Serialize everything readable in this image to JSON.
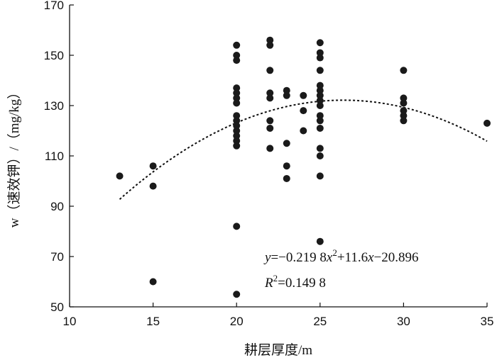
{
  "chart_data": {
    "type": "scatter",
    "title": "",
    "xlabel": "耕层厚度/m",
    "ylabel": "w（速效钾）/（mg/kg）",
    "xlim": [
      10,
      35
    ],
    "ylim": [
      50,
      170
    ],
    "x_ticks": [
      "10",
      "15",
      "20",
      "25",
      "30",
      "35"
    ],
    "y_ticks": [
      "50",
      "70",
      "90",
      "110",
      "130",
      "150",
      "170"
    ],
    "grid": false,
    "legend": "none",
    "marker_color": "#1a1a1a",
    "trend_color": "#111111",
    "points": [
      {
        "x": 13,
        "y": 102
      },
      {
        "x": 15,
        "y": 106
      },
      {
        "x": 15,
        "y": 98
      },
      {
        "x": 15,
        "y": 60
      },
      {
        "x": 20,
        "y": 154
      },
      {
        "x": 20,
        "y": 150
      },
      {
        "x": 20,
        "y": 148
      },
      {
        "x": 20,
        "y": 137
      },
      {
        "x": 20,
        "y": 135
      },
      {
        "x": 20,
        "y": 133
      },
      {
        "x": 20,
        "y": 131
      },
      {
        "x": 20,
        "y": 126
      },
      {
        "x": 20,
        "y": 124
      },
      {
        "x": 20,
        "y": 122
      },
      {
        "x": 20,
        "y": 120
      },
      {
        "x": 20,
        "y": 118
      },
      {
        "x": 20,
        "y": 116
      },
      {
        "x": 20,
        "y": 114
      },
      {
        "x": 20,
        "y": 82
      },
      {
        "x": 20,
        "y": 55
      },
      {
        "x": 22,
        "y": 156
      },
      {
        "x": 22,
        "y": 154
      },
      {
        "x": 22,
        "y": 144
      },
      {
        "x": 22,
        "y": 135
      },
      {
        "x": 22,
        "y": 133
      },
      {
        "x": 22,
        "y": 124
      },
      {
        "x": 22,
        "y": 121
      },
      {
        "x": 22,
        "y": 113
      },
      {
        "x": 23,
        "y": 136
      },
      {
        "x": 23,
        "y": 134
      },
      {
        "x": 23,
        "y": 115
      },
      {
        "x": 23,
        "y": 106
      },
      {
        "x": 23,
        "y": 101
      },
      {
        "x": 24,
        "y": 134
      },
      {
        "x": 24,
        "y": 128
      },
      {
        "x": 24,
        "y": 120
      },
      {
        "x": 25,
        "y": 155
      },
      {
        "x": 25,
        "y": 151
      },
      {
        "x": 25,
        "y": 149
      },
      {
        "x": 25,
        "y": 144
      },
      {
        "x": 25,
        "y": 138
      },
      {
        "x": 25,
        "y": 136
      },
      {
        "x": 25,
        "y": 134
      },
      {
        "x": 25,
        "y": 132
      },
      {
        "x": 25,
        "y": 130
      },
      {
        "x": 25,
        "y": 126
      },
      {
        "x": 25,
        "y": 124
      },
      {
        "x": 25,
        "y": 121
      },
      {
        "x": 25,
        "y": 113
      },
      {
        "x": 25,
        "y": 110
      },
      {
        "x": 25,
        "y": 102
      },
      {
        "x": 25,
        "y": 76
      },
      {
        "x": 30,
        "y": 144
      },
      {
        "x": 30,
        "y": 133
      },
      {
        "x": 30,
        "y": 131
      },
      {
        "x": 30,
        "y": 128
      },
      {
        "x": 30,
        "y": 126
      },
      {
        "x": 30,
        "y": 124
      },
      {
        "x": 35,
        "y": 123
      }
    ],
    "trendline": {
      "type": "polynomial",
      "coefficients": {
        "a": -0.2198,
        "b": 11.6,
        "c": -20.896
      },
      "x_range": [
        13,
        35
      ],
      "style": "dotted"
    },
    "annotations": {
      "equation_y": "y",
      "equation_body_1": "=−0.219 8",
      "equation_x": "x",
      "equation_exp": "2",
      "equation_body_2": "+11.6",
      "equation_x2": "x",
      "equation_body_3": "−20.896",
      "r2_R": "R",
      "r2_exp": "2",
      "r2_value": "=0.149 8"
    }
  }
}
